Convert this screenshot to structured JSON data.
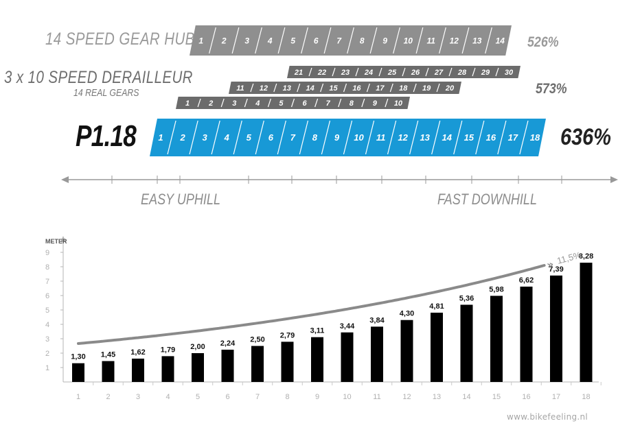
{
  "rows": {
    "hub": {
      "label": "14 SPEED GEAR HUB",
      "percent": "526%",
      "gears": [
        "1",
        "2",
        "3",
        "4",
        "5",
        "6",
        "7",
        "8",
        "9",
        "10",
        "11",
        "12",
        "13",
        "14"
      ],
      "color": "#8f8f8f"
    },
    "derailleur": {
      "label": "3 x 10 SPEED DERAILLEUR",
      "sublabel": "14 REAL GEARS",
      "percent": "573%",
      "color": "#6b6b6b",
      "chainrings": [
        {
          "gears": [
            "21",
            "22",
            "23",
            "24",
            "25",
            "26",
            "27",
            "28",
            "29",
            "30"
          ]
        },
        {
          "gears": [
            "11",
            "12",
            "13",
            "14",
            "15",
            "16",
            "17",
            "18",
            "19",
            "20"
          ]
        },
        {
          "gears": [
            "1",
            "2",
            "3",
            "4",
            "5",
            "6",
            "7",
            "8",
            "9",
            "10"
          ]
        }
      ]
    },
    "p118": {
      "label": "P1.18",
      "percent": "636%",
      "gears": [
        "1",
        "2",
        "3",
        "4",
        "5",
        "6",
        "7",
        "8",
        "9",
        "10",
        "11",
        "12",
        "13",
        "14",
        "15",
        "16",
        "17",
        "18"
      ],
      "color": "#1899d6"
    }
  },
  "range": {
    "easy": "EASY UPHILL",
    "fast": "FAST DOWNHILL",
    "color": "#999999"
  },
  "chart_data": {
    "type": "bar",
    "ylabel": "METER",
    "ylim": [
      0,
      10
    ],
    "yticks": [
      "1",
      "2",
      "3",
      "4",
      "5",
      "6",
      "7",
      "8",
      "9"
    ],
    "categories": [
      "1",
      "2",
      "3",
      "4",
      "5",
      "6",
      "7",
      "8",
      "9",
      "10",
      "11",
      "12",
      "13",
      "14",
      "15",
      "16",
      "17",
      "18"
    ],
    "values": [
      1.3,
      1.45,
      1.62,
      1.79,
      2.0,
      2.24,
      2.5,
      2.79,
      3.11,
      3.44,
      3.84,
      4.3,
      4.81,
      5.36,
      5.98,
      6.62,
      7.39,
      8.28
    ],
    "value_labels": [
      "1,30",
      "1,45",
      "1,62",
      "1,79",
      "2,00",
      "2,24",
      "2,50",
      "2,79",
      "3,11",
      "3,44",
      "3,84",
      "4,30",
      "4,81",
      "5,36",
      "5,98",
      "6,62",
      "7,39",
      "8,28"
    ],
    "annotation": "11,5%",
    "bar_color": "#000000",
    "curve_color": "#8a8a8a",
    "grid": false
  },
  "watermark": "www.bikefeeling.nl"
}
